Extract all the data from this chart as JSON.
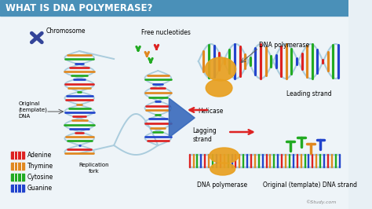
{
  "title": "WHAT IS DNA POLYMERASE?",
  "title_bg": "#4a90b8",
  "title_color": "white",
  "bg_color": "#e8f0f5",
  "labels": {
    "chromosome": "Chromosome",
    "free_nucleotides": "Free nucleotides",
    "dna_polymerase_top": "DNA polymerase",
    "leading_strand": "Leading strand",
    "helicase": "Helicase",
    "lagging_strand": "Lagging\nstrand",
    "original_template": "Original\n(template)\nDNA",
    "replication_fork": "Replication\nfork",
    "dna_polymerase_bottom": "DNA polymerase",
    "original_template_strand": "Original (template) DNA strand",
    "watermark": "©Study.com"
  },
  "legend": [
    {
      "label": "Adenine",
      "color": "#dd2222"
    },
    {
      "label": "Thymine",
      "color": "#e08820"
    },
    {
      "label": "Cytosine",
      "color": "#22aa22"
    },
    {
      "label": "Guanine",
      "color": "#2244cc"
    }
  ],
  "dna_colors": [
    "#dd2222",
    "#e08820",
    "#22aa22",
    "#2244cc"
  ],
  "strand_color": "#aaccdd",
  "helicase_color": "#3366bb",
  "polymerase_color": "#e8a020",
  "chromosome_color": "#334499",
  "arrow_color": "#dd2222",
  "line_color": "#555555"
}
